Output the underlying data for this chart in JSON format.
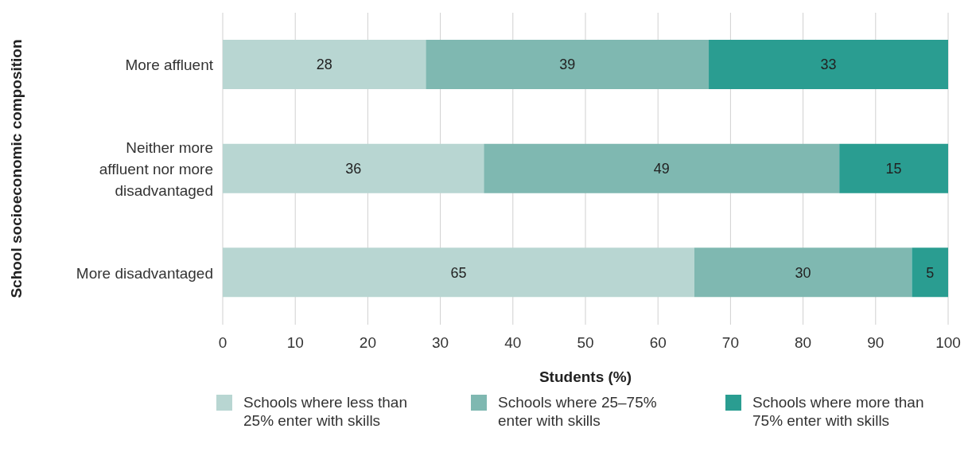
{
  "chart_data": {
    "type": "bar",
    "orientation": "horizontal",
    "stacked": true,
    "categories": [
      "More affluent",
      "Neither more affluent nor more disadvantaged",
      "More disadvantaged"
    ],
    "series": [
      {
        "name": "Schools where less than 25% enter with skills",
        "color": "#b8d6d2",
        "values": [
          28,
          36,
          65
        ]
      },
      {
        "name": "Schools where 25–75% enter with skills",
        "color": "#7fb8b1",
        "values": [
          39,
          49,
          30
        ]
      },
      {
        "name": "Schools where more than 75% enter with skills",
        "color": "#2a9d91",
        "values": [
          33,
          15,
          5
        ]
      }
    ],
    "xlim": [
      0,
      100
    ],
    "xticks": [
      0,
      10,
      20,
      30,
      40,
      50,
      60,
      70,
      80,
      90,
      100
    ],
    "xlabel": "Students (%)",
    "ylabel": "School socioeconomic composition",
    "grid": "x",
    "data_labels": true,
    "legend": "bottom"
  }
}
